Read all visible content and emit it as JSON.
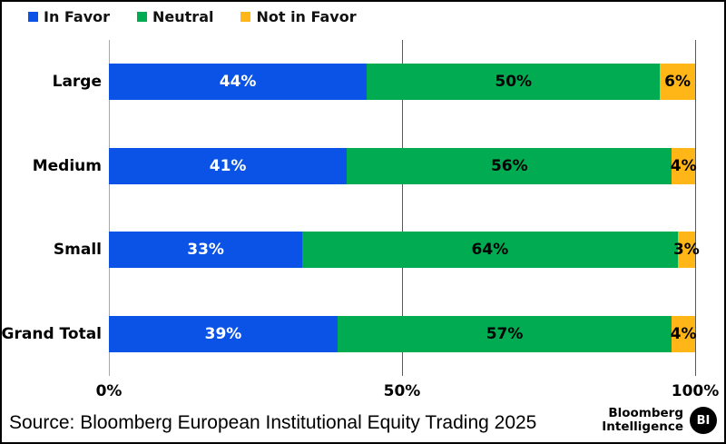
{
  "chart_data": {
    "type": "bar",
    "orientation": "horizontal",
    "stacked": true,
    "categories": [
      "Large",
      "Medium",
      "Small",
      "Grand Total"
    ],
    "series": [
      {
        "name": "In Favor",
        "color": "#0A53E6",
        "label_color": "#ffffff",
        "values": [
          44,
          41,
          33,
          39
        ]
      },
      {
        "name": "Neutral",
        "color": "#00AB51",
        "label_color": "#000000",
        "values": [
          50,
          56,
          64,
          57
        ]
      },
      {
        "name": "Not in Favor",
        "color": "#FFB616",
        "label_color": "#000000",
        "values": [
          6,
          4,
          3,
          4
        ]
      }
    ],
    "value_suffix": "%",
    "xlim": [
      0,
      100
    ],
    "x_ticks": [
      {
        "label": "0%",
        "pos": 0,
        "line_style": "light"
      },
      {
        "label": "50%",
        "pos": 50,
        "line_style": "dark"
      },
      {
        "label": "100%",
        "pos": 100,
        "line_style": "dark"
      }
    ],
    "legend_position": "top-left",
    "grid": "vertical-only"
  },
  "footer": {
    "source": "Source: Bloomberg European Institutional Equity Trading 2025",
    "logo_line1": "Bloomberg",
    "logo_line2": "Intelligence",
    "logo_badge": "BI"
  }
}
